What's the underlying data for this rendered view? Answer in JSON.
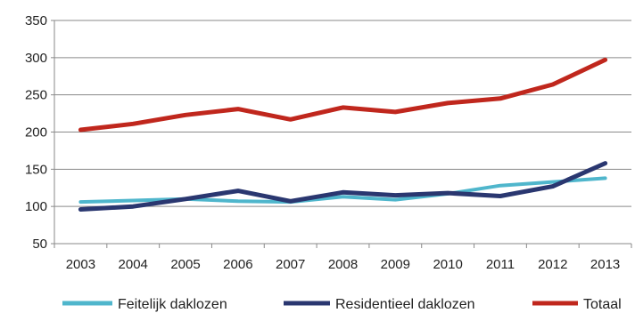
{
  "chart_data": {
    "type": "line",
    "x": [
      "2003",
      "2004",
      "2005",
      "2006",
      "2007",
      "2008",
      "2009",
      "2010",
      "2011",
      "2012",
      "2013"
    ],
    "ylim": [
      50,
      350
    ],
    "yticks": [
      50,
      100,
      150,
      200,
      250,
      300,
      350
    ],
    "grid": true,
    "legend": "bottom",
    "series": [
      {
        "name": "Feitelijk daklozen",
        "color": "#4fb6cc",
        "values": [
          106,
          108,
          110,
          107,
          106,
          113,
          109,
          117,
          128,
          133,
          138
        ]
      },
      {
        "name": "Residentieel daklozen",
        "color": "#2a3770",
        "values": [
          96,
          100,
          110,
          121,
          107,
          119,
          115,
          118,
          114,
          127,
          158
        ]
      },
      {
        "name": "Totaal",
        "color": "#c0271d",
        "values": [
          203,
          211,
          223,
          231,
          217,
          233,
          227,
          239,
          245,
          264,
          297
        ]
      }
    ]
  }
}
